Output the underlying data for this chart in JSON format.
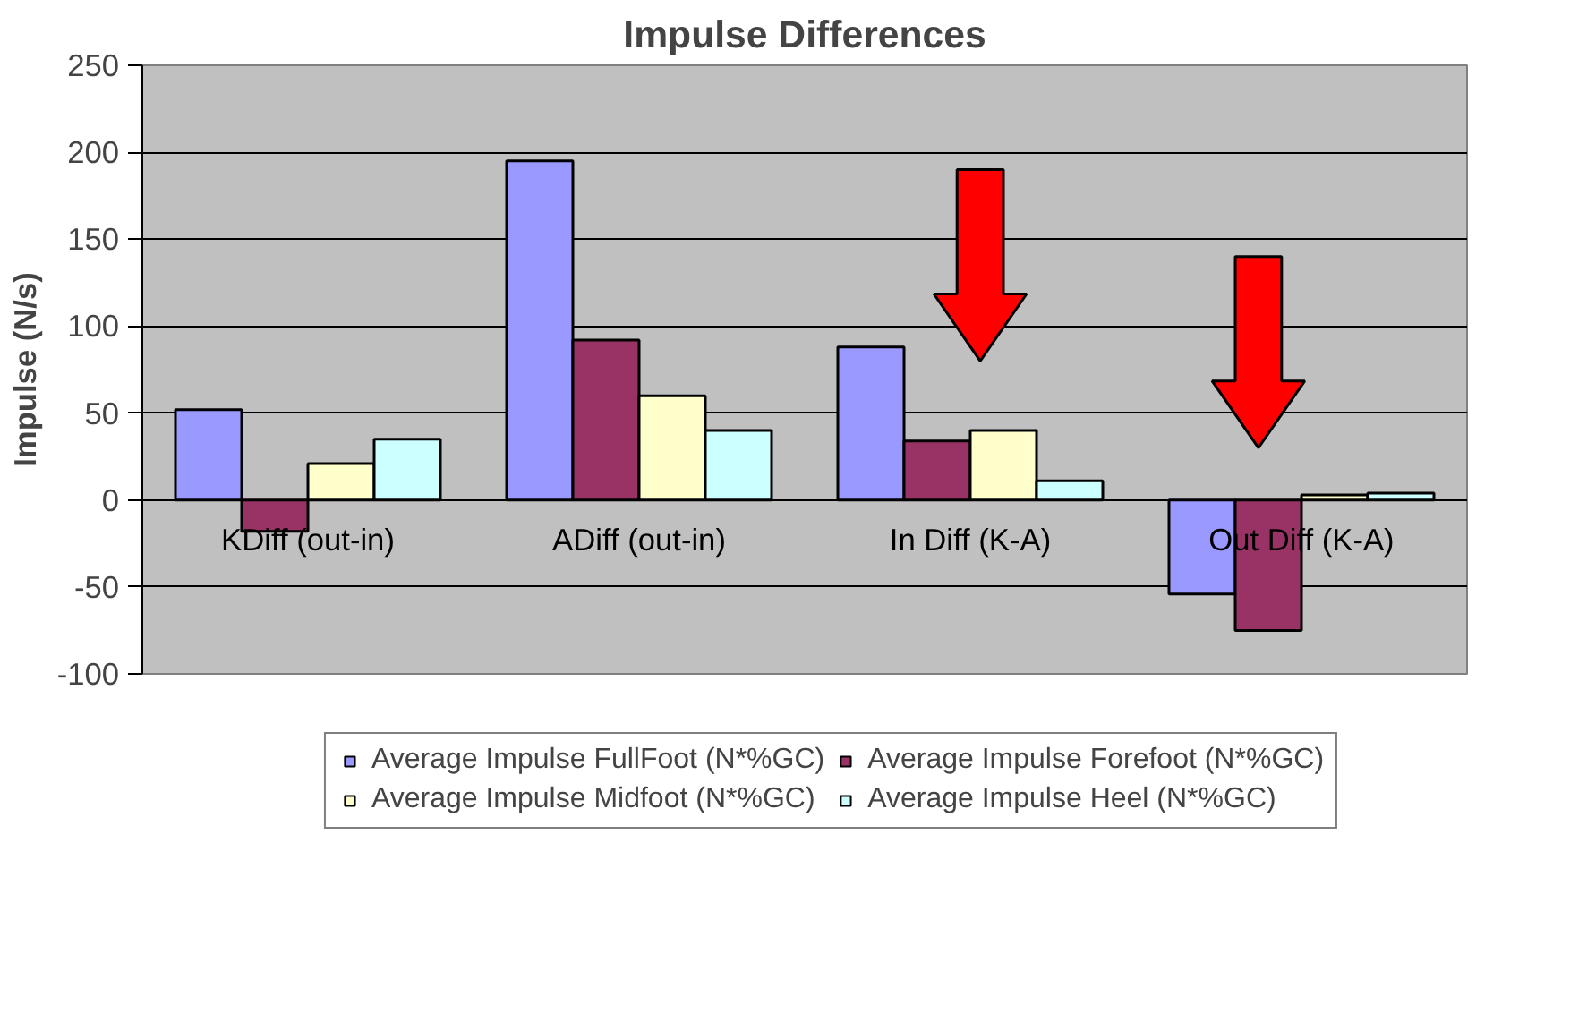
{
  "chart_data": {
    "type": "bar",
    "title": "Impulse Differences",
    "ylabel": "Impulse (N/s)",
    "categories": [
      "KDiff (out-in)",
      "ADiff (out-in)",
      "In Diff (K-A)",
      "Out Diff (K-A)"
    ],
    "series": [
      {
        "name": "Average Impulse FullFoot (N*%GC)",
        "color": "#9999ff",
        "values": [
          52,
          195,
          88,
          -54
        ]
      },
      {
        "name": "Average Impulse Forefoot (N*%GC)",
        "color": "#993366",
        "values": [
          -18,
          92,
          34,
          -75
        ]
      },
      {
        "name": "Average Impulse Midfoot (N*%GC)",
        "color": "#ffffcc",
        "values": [
          21,
          60,
          40,
          3
        ]
      },
      {
        "name": "Average Impulse Heel (N*%GC)",
        "color": "#ccffff",
        "values": [
          35,
          40,
          11,
          4
        ]
      }
    ],
    "ylim": [
      -100,
      250
    ],
    "yticks": [
      -100,
      -50,
      0,
      50,
      100,
      150,
      200,
      250
    ],
    "grid": "y",
    "legend": "bottom"
  }
}
